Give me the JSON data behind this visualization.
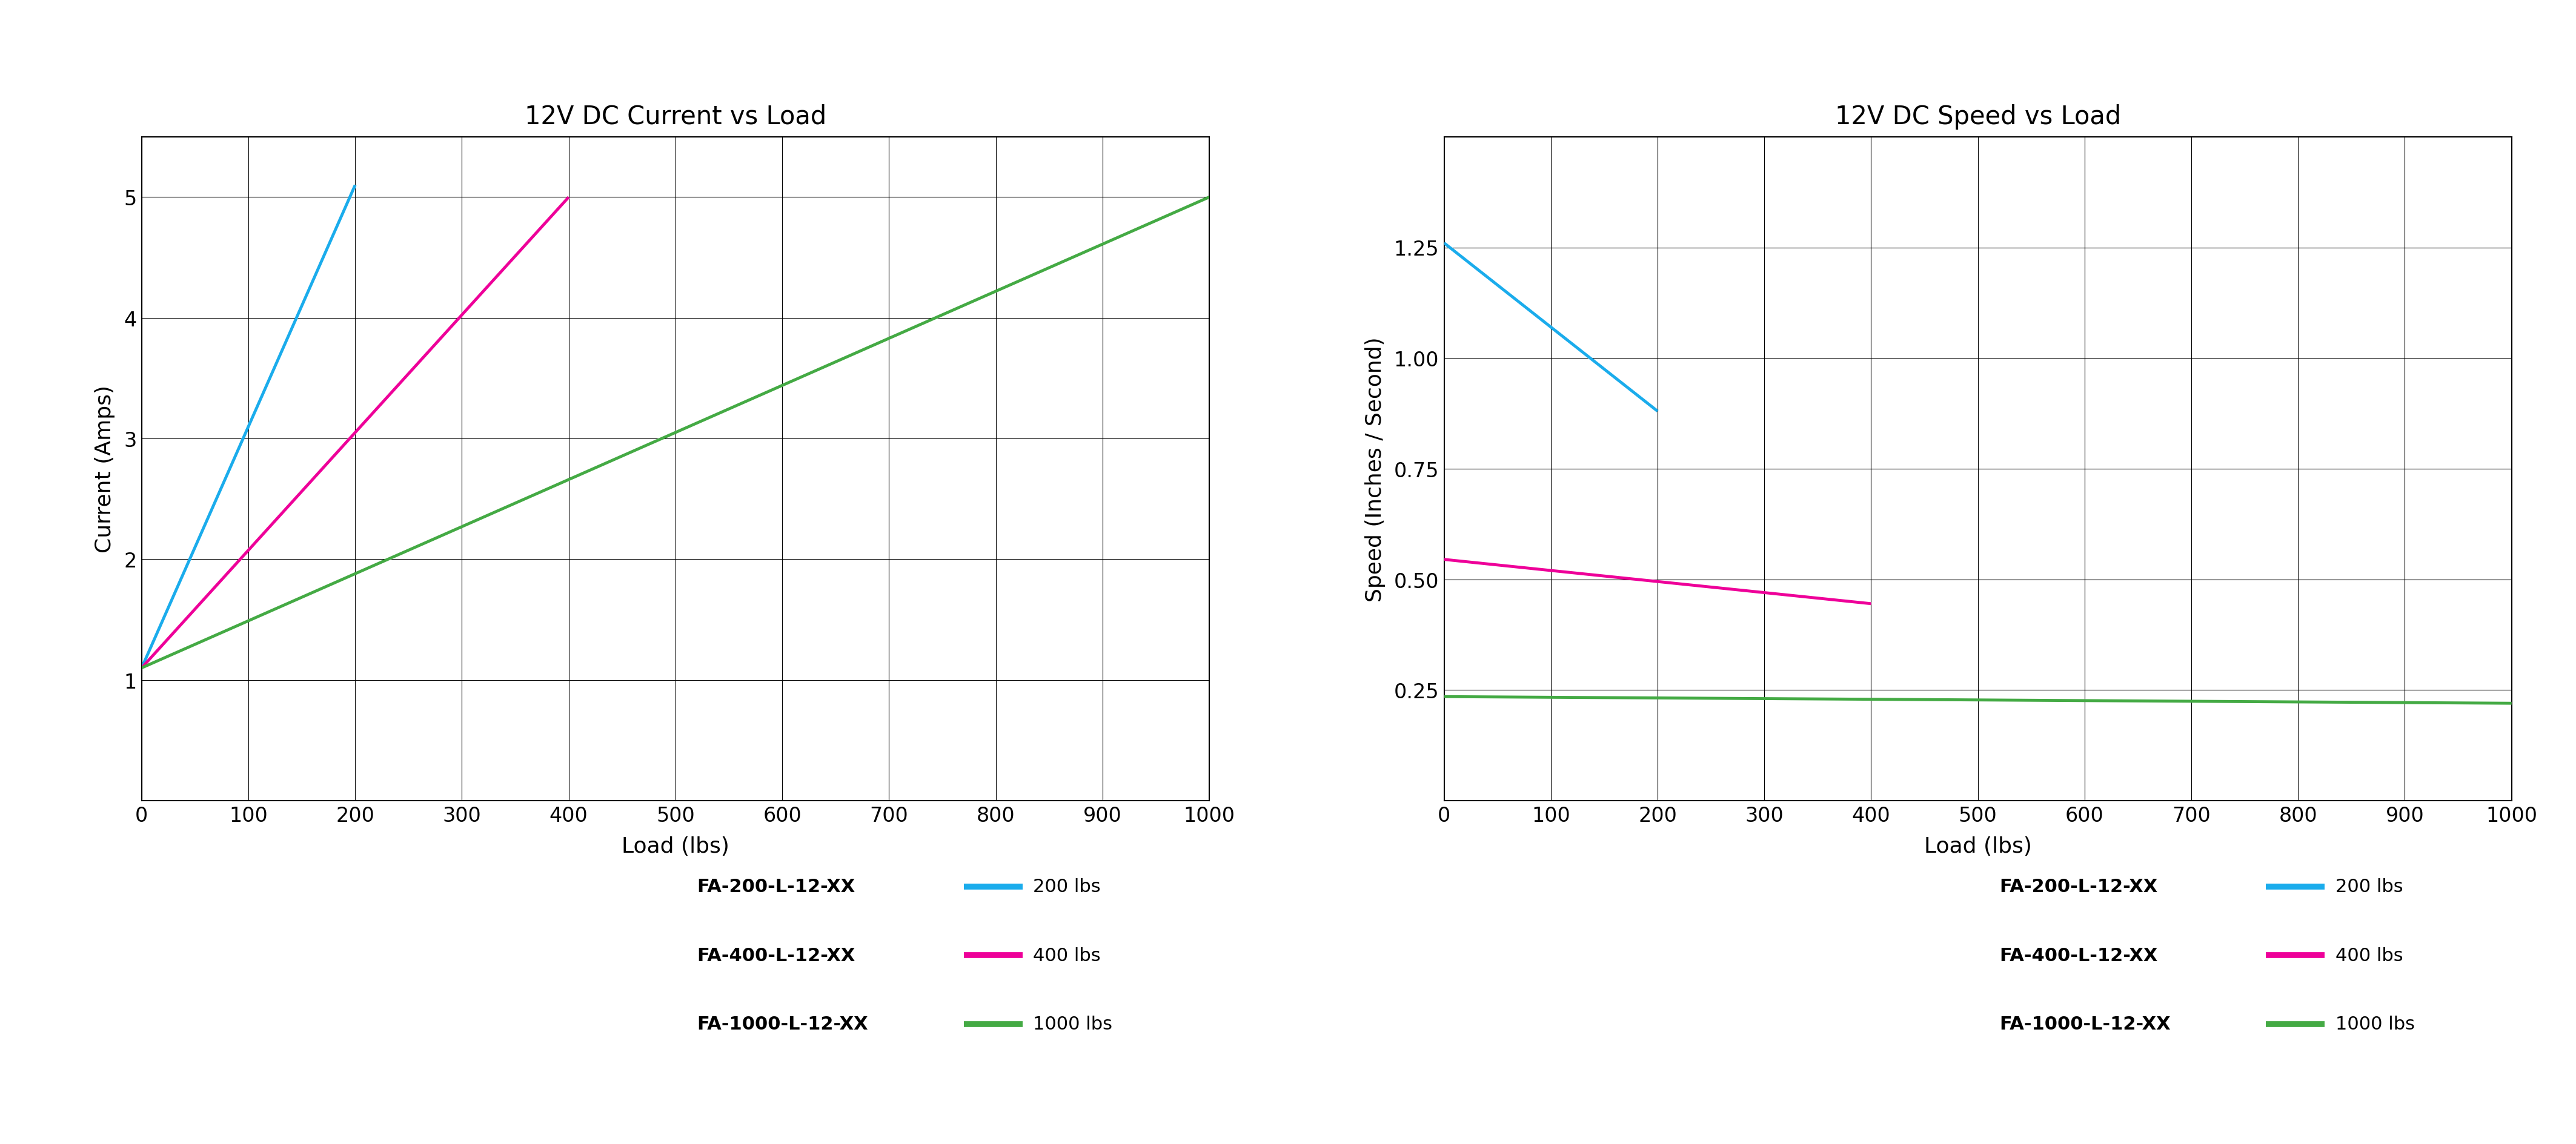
{
  "chart1": {
    "title": "12V DC Current vs Load",
    "xlabel": "Load (lbs)",
    "ylabel": "Current (Amps)",
    "xlim": [
      0,
      1000
    ],
    "ylim": [
      0,
      5.5
    ],
    "yticks": [
      1.0,
      2.0,
      3.0,
      4.0,
      5.0
    ],
    "xticks": [
      0,
      100,
      200,
      300,
      400,
      500,
      600,
      700,
      800,
      900,
      1000
    ],
    "series": [
      {
        "label": "200 lbs",
        "model": "FA-200-L-12-XX",
        "color": "#1AACEC",
        "x": [
          0,
          200
        ],
        "y": [
          1.1,
          5.1
        ]
      },
      {
        "label": "400 lbs",
        "model": "FA-400-L-12-XX",
        "color": "#EE0099",
        "x": [
          0,
          400
        ],
        "y": [
          1.1,
          5.0
        ]
      },
      {
        "label": "1000 lbs",
        "model": "FA-1000-L-12-XX",
        "color": "#44AA44",
        "x": [
          0,
          1000
        ],
        "y": [
          1.1,
          5.0
        ]
      }
    ]
  },
  "chart2": {
    "title": "12V DC Speed vs Load",
    "xlabel": "Load (lbs)",
    "ylabel": "Speed (Inches / Second)",
    "xlim": [
      0,
      1000
    ],
    "ylim": [
      0,
      1.5
    ],
    "yticks": [
      0.25,
      0.5,
      0.75,
      1.0,
      1.25
    ],
    "xticks": [
      0,
      100,
      200,
      300,
      400,
      500,
      600,
      700,
      800,
      900,
      1000
    ],
    "series": [
      {
        "label": "200 lbs",
        "model": "FA-200-L-12-XX",
        "color": "#1AACEC",
        "x": [
          0,
          200
        ],
        "y": [
          1.26,
          0.88
        ]
      },
      {
        "label": "400 lbs",
        "model": "FA-400-L-12-XX",
        "color": "#EE0099",
        "x": [
          0,
          400
        ],
        "y": [
          0.545,
          0.445
        ]
      },
      {
        "label": "1000 lbs",
        "model": "FA-1000-L-12-XX",
        "color": "#44AA44",
        "x": [
          0,
          1000
        ],
        "y": [
          0.235,
          0.22
        ]
      }
    ]
  },
  "title_fontsize": 30,
  "axis_label_fontsize": 26,
  "tick_fontsize": 24,
  "legend_model_fontsize": 22,
  "legend_label_fontsize": 22,
  "line_width": 3.5,
  "background_color": "#FFFFFF",
  "grid_color": "#000000",
  "grid_alpha": 1.0,
  "grid_linewidth": 0.8,
  "spine_linewidth": 1.5
}
